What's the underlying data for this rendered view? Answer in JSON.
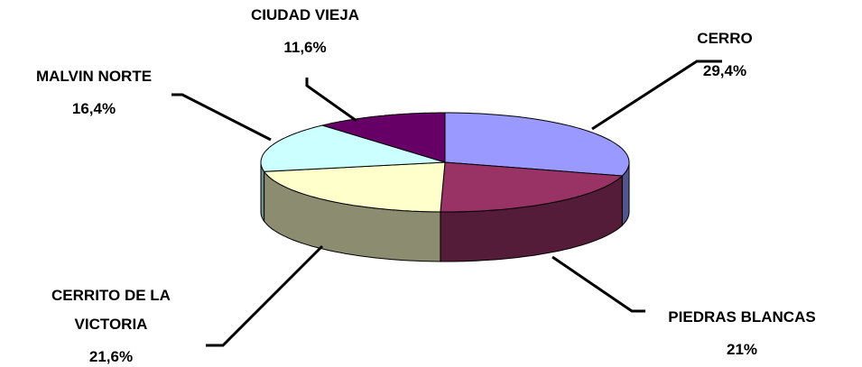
{
  "chart_data": {
    "type": "pie",
    "categories": [
      "CERRO",
      "PIEDRAS BLANCAS",
      "CERRITO DE LA VICTORIA",
      "MALVIN NORTE",
      "CIUDAD VIEJA"
    ],
    "values": [
      29.4,
      21,
      21.6,
      16.4,
      11.6
    ],
    "value_labels": [
      "29,4%",
      "21%",
      "21,6%",
      "16,4%",
      "11,6%"
    ],
    "colors": [
      "#9999ff",
      "#993366",
      "#ffffcc",
      "#ccffff",
      "#660066"
    ]
  }
}
